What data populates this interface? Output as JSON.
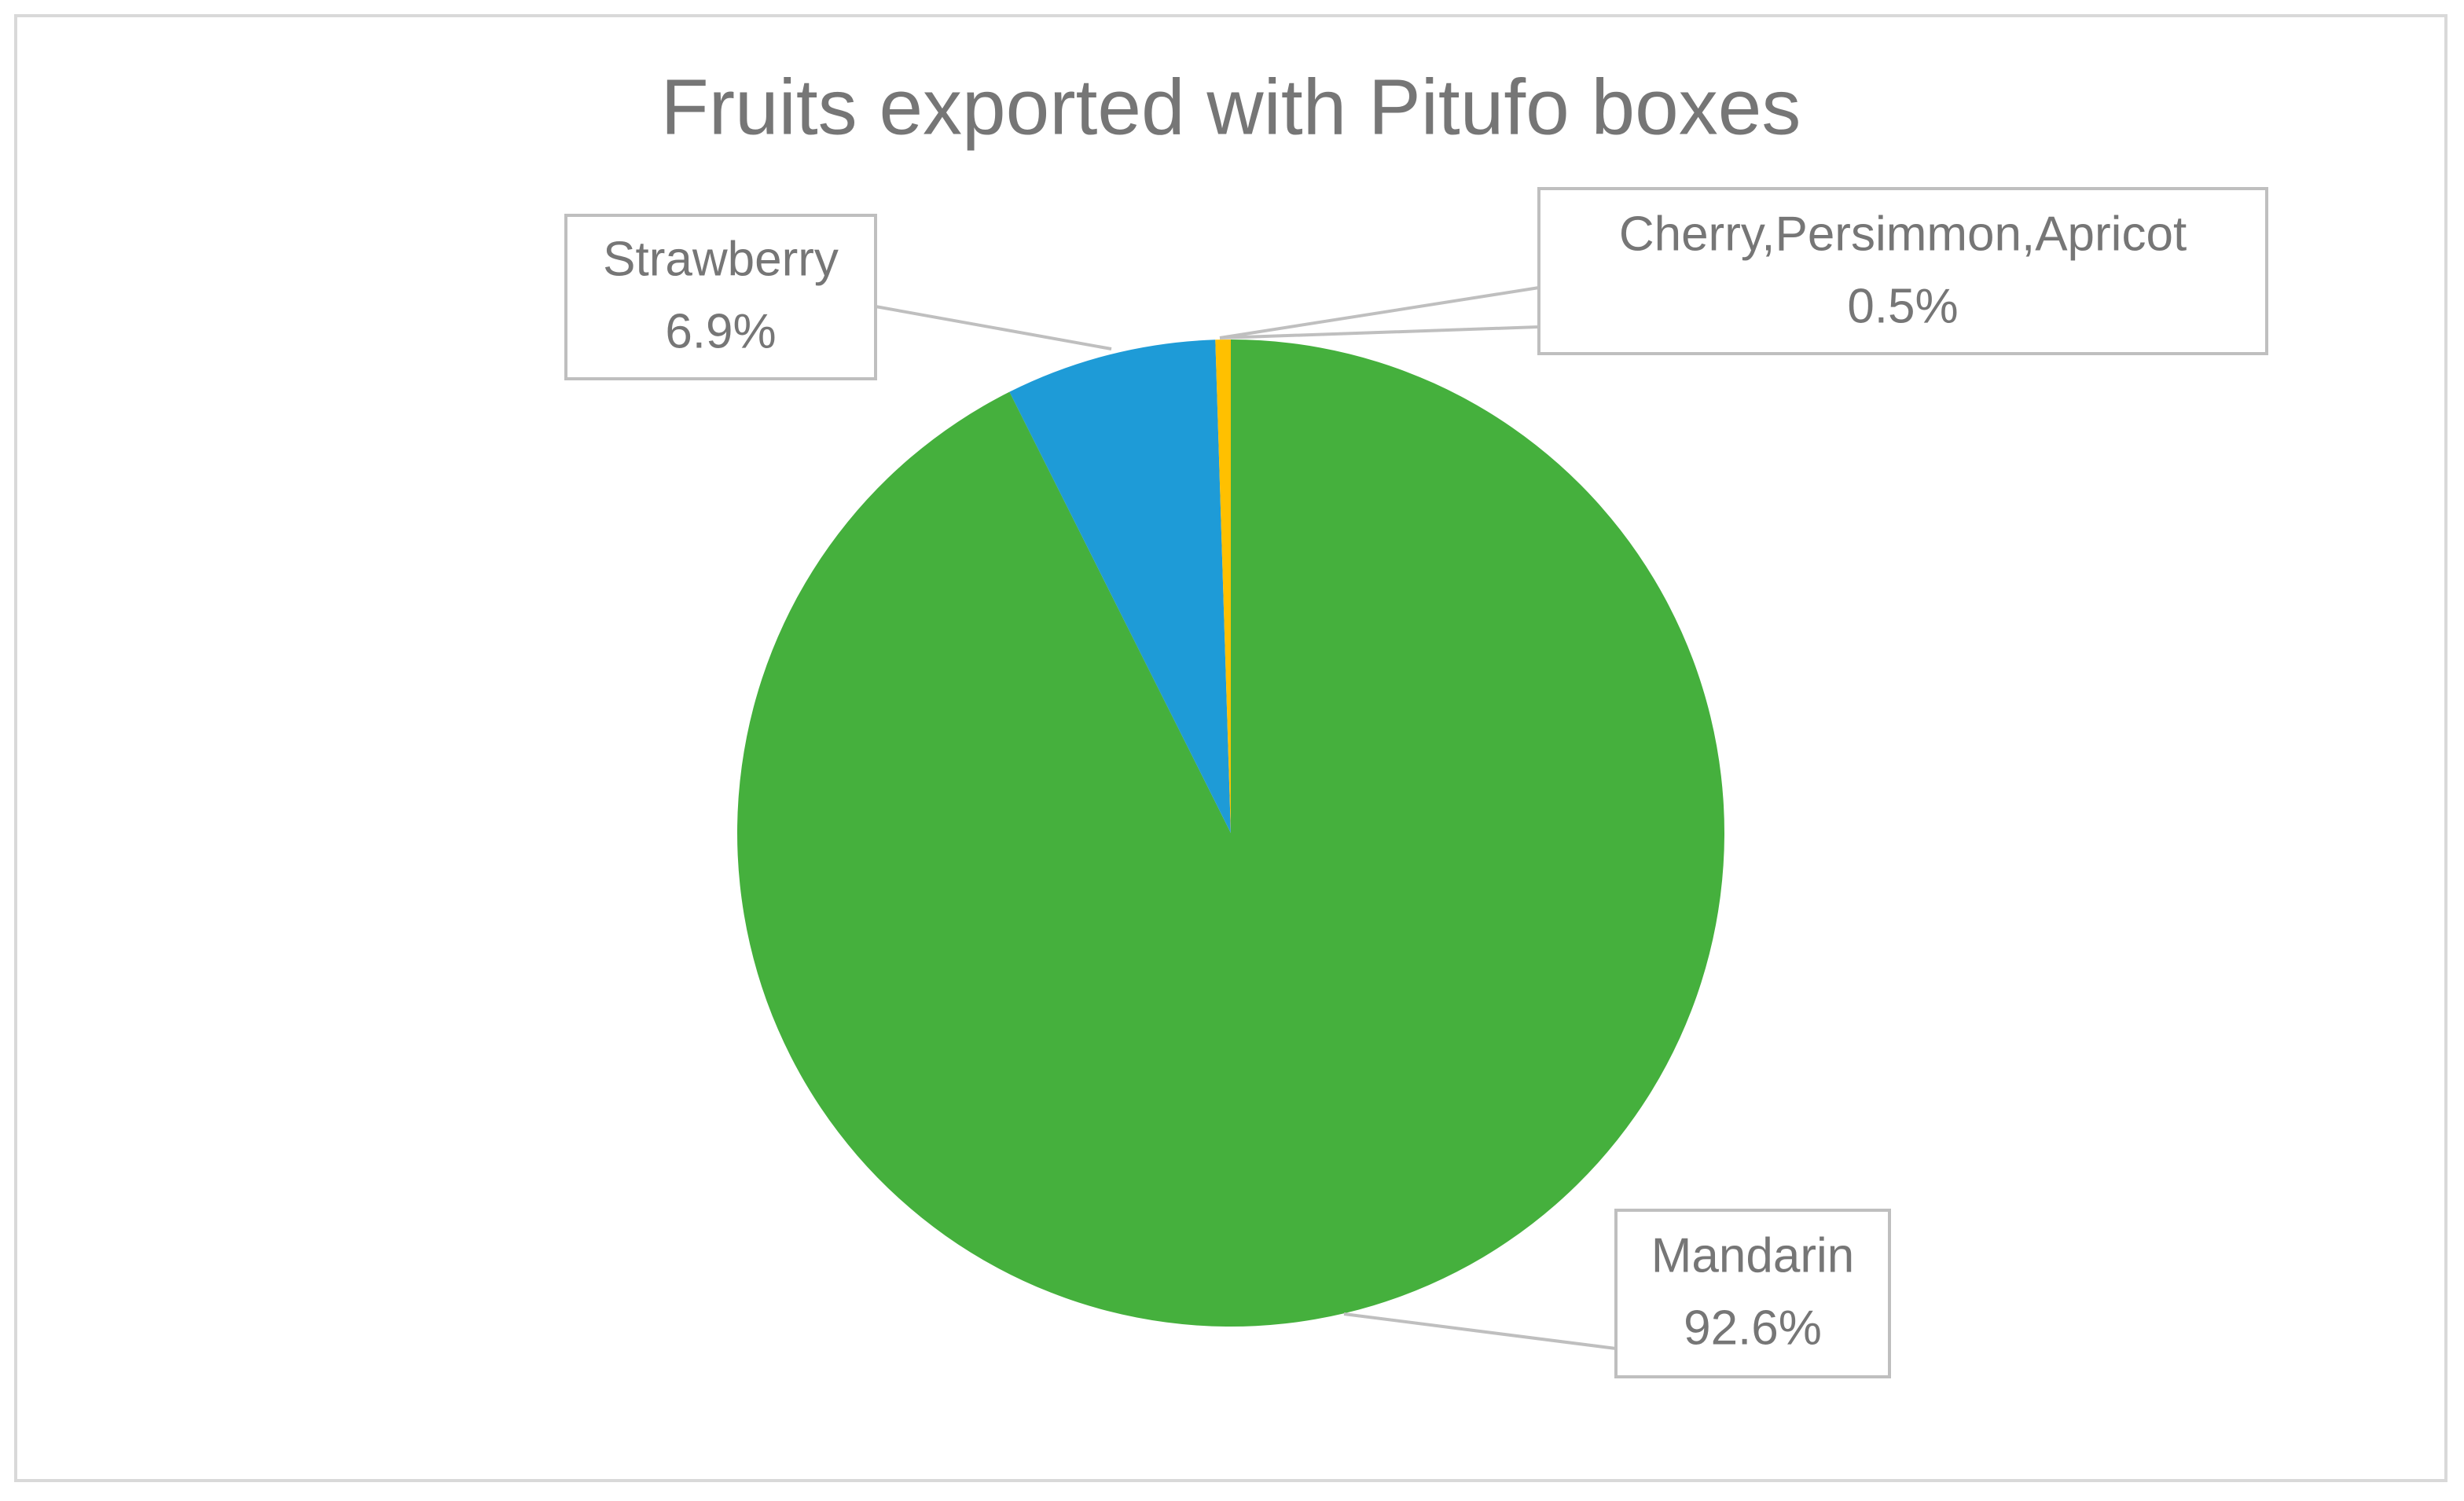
{
  "chart_data": {
    "type": "pie",
    "title": "Fruits exported with Pitufo boxes",
    "categories": [
      "Mandarin",
      "Strawberry",
      "Cherry,Persimmon,Apricot"
    ],
    "values": [
      92.6,
      6.9,
      0.5
    ],
    "value_labels": [
      "92.6%",
      "6.9%",
      "0.5%"
    ],
    "colors": [
      "#45b03d",
      "#1e9bd7",
      "#ffc000"
    ]
  }
}
